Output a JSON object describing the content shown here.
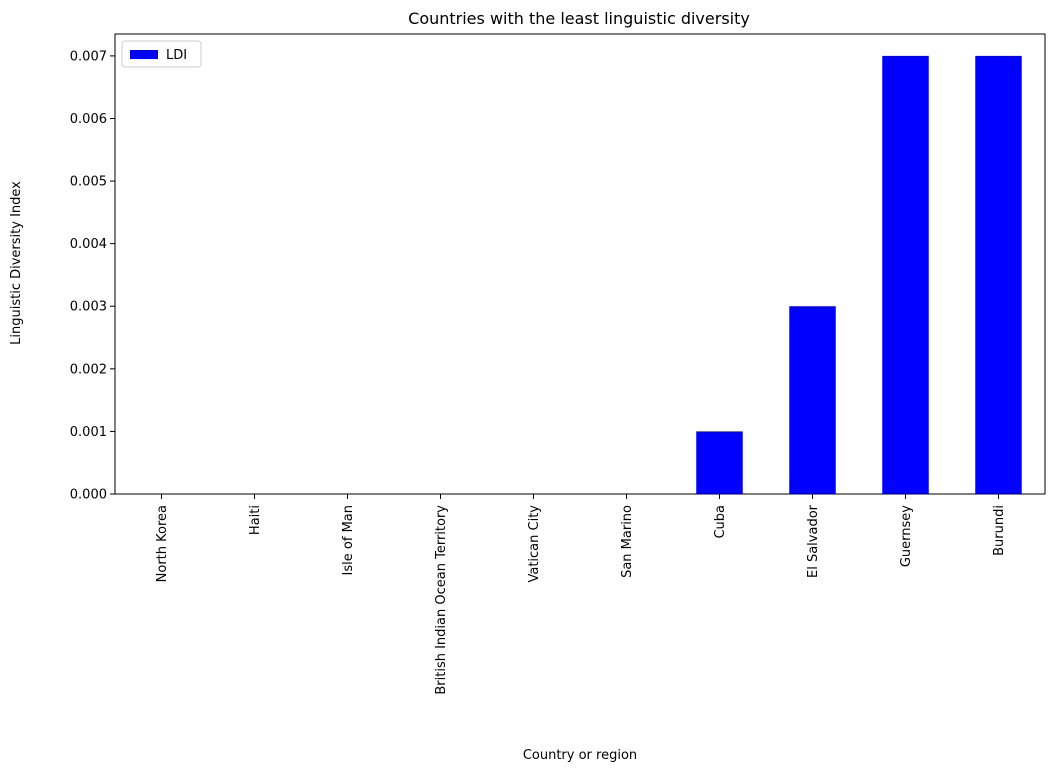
{
  "chart_data": {
    "type": "bar",
    "title": "Countries with the least linguistic diversity",
    "xlabel": "Country or region",
    "ylabel": "Linguistic Diversity Index",
    "categories": [
      "North Korea",
      "Haiti",
      "Isle of Man",
      "British Indian Ocean Territory",
      "Vatican City",
      "San Marino",
      "Cuba",
      "El Salvador",
      "Guernsey",
      "Burundi"
    ],
    "series": [
      {
        "name": "LDI",
        "color": "#0000ff",
        "values": [
          0.0,
          0.0,
          0.0,
          0.0,
          0.0,
          0.0,
          0.001,
          0.003,
          0.007,
          0.007
        ]
      }
    ],
    "ylim": [
      0,
      0.00735
    ],
    "yticks": [
      "0.000",
      "0.001",
      "0.002",
      "0.003",
      "0.004",
      "0.005",
      "0.006",
      "0.007"
    ],
    "legend": "top-left",
    "grid": false
  }
}
